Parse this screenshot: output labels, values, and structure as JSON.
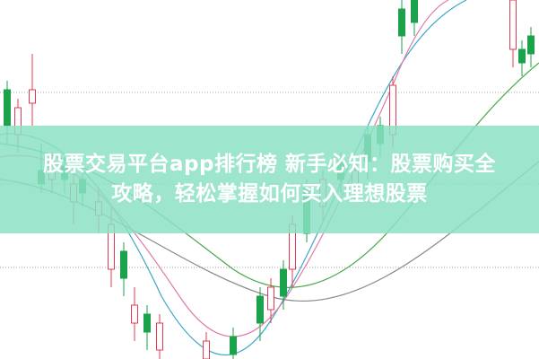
{
  "title_line1": "股票交易平台app排行榜 新手必知：股票购买全",
  "title_line2": "攻略，轻松掌握如何买入理想股票",
  "colors": {
    "band": "#8ce0c4",
    "up_candle": "#e8384f",
    "down_candle": "#1aa34a",
    "title": "#ffffff"
  }
}
